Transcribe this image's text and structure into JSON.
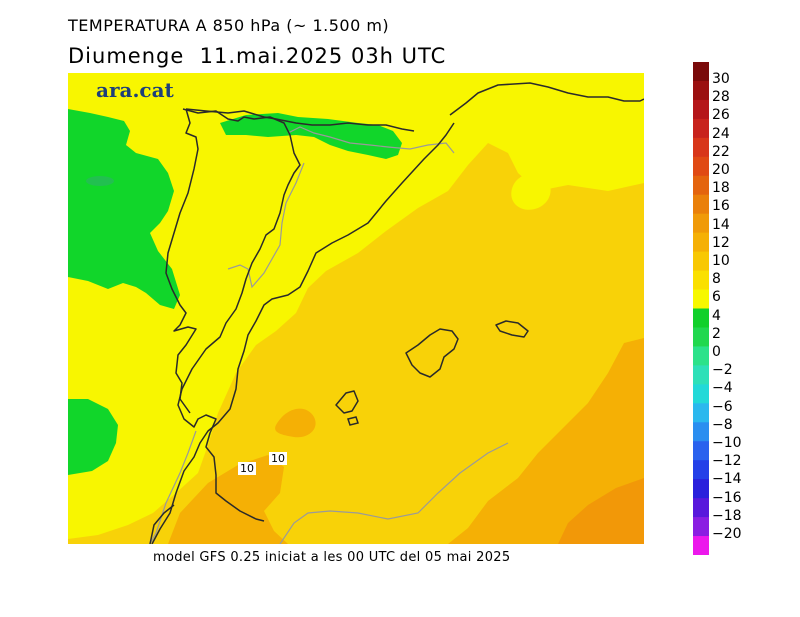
{
  "title": "TEMPERATURA A 850 hPa (~ 1.500 m)",
  "subtitle": "Diumenge  11.mai.2025 03h UTC",
  "footer": "model GFS 0.25 iniciat a les 00 UTC del 05 mai 2025",
  "logo": "ara.cat",
  "contour_labels": [
    {
      "text": "10"
    },
    {
      "text": "10"
    }
  ],
  "colorbar": {
    "labels": [
      "30",
      "28",
      "26",
      "24",
      "22",
      "20",
      "18",
      "16",
      "14",
      "12",
      "10",
      "8",
      "6",
      "4",
      "2",
      "0",
      "−2",
      "−4",
      "−6",
      "−8",
      "−10",
      "−12",
      "−14",
      "−16",
      "−18",
      "−20"
    ],
    "colors": [
      "#7a0a0a",
      "#9b1010",
      "#b5161a",
      "#c8231d",
      "#d8361a",
      "#e04a14",
      "#e4640e",
      "#ea800a",
      "#f09a08",
      "#f5b005",
      "#f8c803",
      "#fae000",
      "#f7f800",
      "#11d02a",
      "#21d84e",
      "#2ce28a",
      "#2ee0b8",
      "#22d9d8",
      "#2bb8ee",
      "#2b8ef0",
      "#2a62ee",
      "#2440e8",
      "#2a20dc",
      "#5818dc",
      "#8a1ee2",
      "#ec18ec"
    ]
  },
  "map": {
    "colors": {
      "background": "#f8d208",
      "yellow": "#f8f600",
      "green": "#11d62a",
      "orange": "#f5b005",
      "deep_orange": "#f29808",
      "coast": "#2a2a2a",
      "border": "#9a9a9a"
    }
  }
}
